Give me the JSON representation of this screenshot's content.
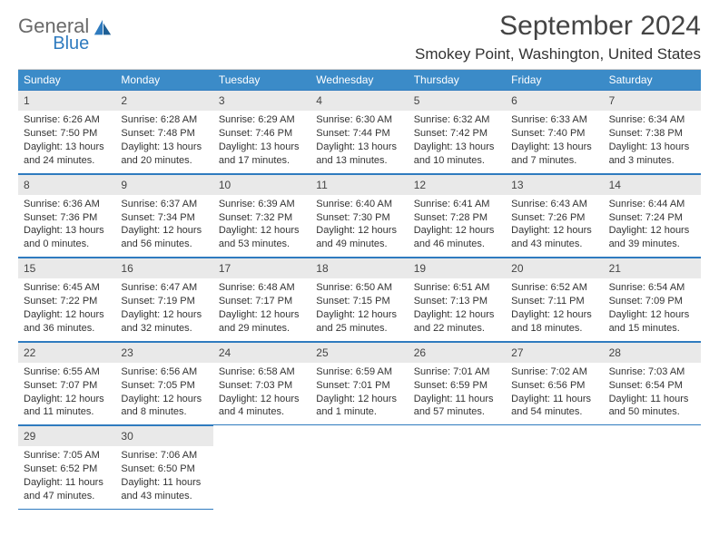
{
  "brand": {
    "general": "General",
    "blue": "Blue"
  },
  "title": "September 2024",
  "location": "Smokey Point, Washington, United States",
  "colors": {
    "header_bg": "#3b8bc8",
    "rule": "#2f7bbf",
    "daynum_bg": "#e9e9e9",
    "text": "#333333",
    "logo_gray": "#6a6a6a",
    "logo_blue": "#2f7bbf"
  },
  "dow": [
    "Sunday",
    "Monday",
    "Tuesday",
    "Wednesday",
    "Thursday",
    "Friday",
    "Saturday"
  ],
  "days": [
    {
      "n": "1",
      "sr": "6:26 AM",
      "ss": "7:50 PM",
      "dl": "13 hours and 24 minutes."
    },
    {
      "n": "2",
      "sr": "6:28 AM",
      "ss": "7:48 PM",
      "dl": "13 hours and 20 minutes."
    },
    {
      "n": "3",
      "sr": "6:29 AM",
      "ss": "7:46 PM",
      "dl": "13 hours and 17 minutes."
    },
    {
      "n": "4",
      "sr": "6:30 AM",
      "ss": "7:44 PM",
      "dl": "13 hours and 13 minutes."
    },
    {
      "n": "5",
      "sr": "6:32 AM",
      "ss": "7:42 PM",
      "dl": "13 hours and 10 minutes."
    },
    {
      "n": "6",
      "sr": "6:33 AM",
      "ss": "7:40 PM",
      "dl": "13 hours and 7 minutes."
    },
    {
      "n": "7",
      "sr": "6:34 AM",
      "ss": "7:38 PM",
      "dl": "13 hours and 3 minutes."
    },
    {
      "n": "8",
      "sr": "6:36 AM",
      "ss": "7:36 PM",
      "dl": "13 hours and 0 minutes."
    },
    {
      "n": "9",
      "sr": "6:37 AM",
      "ss": "7:34 PM",
      "dl": "12 hours and 56 minutes."
    },
    {
      "n": "10",
      "sr": "6:39 AM",
      "ss": "7:32 PM",
      "dl": "12 hours and 53 minutes."
    },
    {
      "n": "11",
      "sr": "6:40 AM",
      "ss": "7:30 PM",
      "dl": "12 hours and 49 minutes."
    },
    {
      "n": "12",
      "sr": "6:41 AM",
      "ss": "7:28 PM",
      "dl": "12 hours and 46 minutes."
    },
    {
      "n": "13",
      "sr": "6:43 AM",
      "ss": "7:26 PM",
      "dl": "12 hours and 43 minutes."
    },
    {
      "n": "14",
      "sr": "6:44 AM",
      "ss": "7:24 PM",
      "dl": "12 hours and 39 minutes."
    },
    {
      "n": "15",
      "sr": "6:45 AM",
      "ss": "7:22 PM",
      "dl": "12 hours and 36 minutes."
    },
    {
      "n": "16",
      "sr": "6:47 AM",
      "ss": "7:19 PM",
      "dl": "12 hours and 32 minutes."
    },
    {
      "n": "17",
      "sr": "6:48 AM",
      "ss": "7:17 PM",
      "dl": "12 hours and 29 minutes."
    },
    {
      "n": "18",
      "sr": "6:50 AM",
      "ss": "7:15 PM",
      "dl": "12 hours and 25 minutes."
    },
    {
      "n": "19",
      "sr": "6:51 AM",
      "ss": "7:13 PM",
      "dl": "12 hours and 22 minutes."
    },
    {
      "n": "20",
      "sr": "6:52 AM",
      "ss": "7:11 PM",
      "dl": "12 hours and 18 minutes."
    },
    {
      "n": "21",
      "sr": "6:54 AM",
      "ss": "7:09 PM",
      "dl": "12 hours and 15 minutes."
    },
    {
      "n": "22",
      "sr": "6:55 AM",
      "ss": "7:07 PM",
      "dl": "12 hours and 11 minutes."
    },
    {
      "n": "23",
      "sr": "6:56 AM",
      "ss": "7:05 PM",
      "dl": "12 hours and 8 minutes."
    },
    {
      "n": "24",
      "sr": "6:58 AM",
      "ss": "7:03 PM",
      "dl": "12 hours and 4 minutes."
    },
    {
      "n": "25",
      "sr": "6:59 AM",
      "ss": "7:01 PM",
      "dl": "12 hours and 1 minute."
    },
    {
      "n": "26",
      "sr": "7:01 AM",
      "ss": "6:59 PM",
      "dl": "11 hours and 57 minutes."
    },
    {
      "n": "27",
      "sr": "7:02 AM",
      "ss": "6:56 PM",
      "dl": "11 hours and 54 minutes."
    },
    {
      "n": "28",
      "sr": "7:03 AM",
      "ss": "6:54 PM",
      "dl": "11 hours and 50 minutes."
    },
    {
      "n": "29",
      "sr": "7:05 AM",
      "ss": "6:52 PM",
      "dl": "11 hours and 47 minutes."
    },
    {
      "n": "30",
      "sr": "7:06 AM",
      "ss": "6:50 PM",
      "dl": "11 hours and 43 minutes."
    }
  ],
  "labels": {
    "sunrise": "Sunrise: ",
    "sunset": "Sunset: ",
    "daylight": "Daylight: "
  }
}
